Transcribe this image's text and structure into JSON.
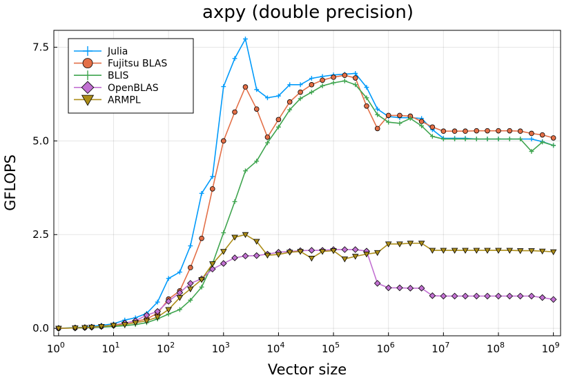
{
  "chart_data": {
    "type": "line",
    "title": "axpy (double precision)",
    "xlabel": "Vector size",
    "ylabel": "GFLOPS",
    "xscale": "log10",
    "xlim": [
      0.82,
      1350000000.0
    ],
    "ylim": [
      -0.2,
      7.95
    ],
    "xticks": [
      {
        "base": "10",
        "exp": "0",
        "value": 1
      },
      {
        "base": "10",
        "exp": "1",
        "value": 10
      },
      {
        "base": "10",
        "exp": "2",
        "value": 100
      },
      {
        "base": "10",
        "exp": "3",
        "value": 1000
      },
      {
        "base": "10",
        "exp": "4",
        "value": 10000
      },
      {
        "base": "10",
        "exp": "5",
        "value": 100000
      },
      {
        "base": "10",
        "exp": "6",
        "value": 1000000
      },
      {
        "base": "10",
        "exp": "7",
        "value": 10000000
      },
      {
        "base": "10",
        "exp": "8",
        "value": 100000000
      },
      {
        "base": "10",
        "exp": "9",
        "value": 1000000000
      }
    ],
    "yticks": [
      {
        "label": "0.0",
        "value": 0
      },
      {
        "label": "2.5",
        "value": 2.5
      },
      {
        "label": "5.0",
        "value": 5.0
      },
      {
        "label": "7.5",
        "value": 7.5
      }
    ],
    "grid": true,
    "legend_position": "top-left",
    "x": [
      1,
      2,
      3,
      4,
      6,
      10,
      16,
      25,
      40,
      63,
      100,
      160,
      250,
      400,
      630,
      1000,
      1600,
      2500,
      4000,
      6300,
      10000,
      16000,
      25000,
      40000,
      63000,
      100000,
      160000,
      250000,
      400000,
      630000,
      1000000,
      1600000,
      2500000,
      4000000,
      6300000,
      10000000,
      16000000,
      25000000,
      40000000,
      63000000,
      100000000,
      160000000,
      250000000,
      400000000,
      630000000,
      1000000000
    ],
    "series": [
      {
        "name": "Julia",
        "color": "#009AFA",
        "marker": "cross",
        "values": [
          0.0,
          0.02,
          0.03,
          0.05,
          0.08,
          0.12,
          0.22,
          0.28,
          0.4,
          0.7,
          1.33,
          1.5,
          2.2,
          3.6,
          4.05,
          6.45,
          7.2,
          7.72,
          6.37,
          6.15,
          6.2,
          6.5,
          6.5,
          6.67,
          6.72,
          6.76,
          6.78,
          6.8,
          6.43,
          5.85,
          5.65,
          5.62,
          5.62,
          5.6,
          5.3,
          5.07,
          5.07,
          5.07,
          5.05,
          5.05,
          5.05,
          5.05,
          5.05,
          5.05,
          4.98,
          4.88
        ]
      },
      {
        "name": "Fujitsu BLAS",
        "color": "#E36F47",
        "marker": "circle",
        "values": [
          0.0,
          0.01,
          0.02,
          0.03,
          0.05,
          0.08,
          0.14,
          0.18,
          0.25,
          0.4,
          0.78,
          1.0,
          1.62,
          2.4,
          3.72,
          5.0,
          5.77,
          6.44,
          5.85,
          5.1,
          5.57,
          6.04,
          6.3,
          6.5,
          6.62,
          6.7,
          6.75,
          6.68,
          5.93,
          5.33,
          5.68,
          5.68,
          5.66,
          5.52,
          5.37,
          5.26,
          5.26,
          5.26,
          5.27,
          5.27,
          5.27,
          5.27,
          5.26,
          5.2,
          5.16,
          5.08
        ]
      },
      {
        "name": "BLIS",
        "color": "#3EA44E",
        "marker": "cross",
        "values": [
          0.0,
          0.01,
          0.01,
          0.02,
          0.03,
          0.05,
          0.07,
          0.1,
          0.15,
          0.25,
          0.38,
          0.5,
          0.75,
          1.1,
          1.72,
          2.55,
          3.38,
          4.2,
          4.46,
          4.95,
          5.37,
          5.83,
          6.13,
          6.3,
          6.47,
          6.55,
          6.6,
          6.5,
          6.15,
          5.7,
          5.5,
          5.47,
          5.6,
          5.4,
          5.12,
          5.05,
          5.05,
          5.05,
          5.05,
          5.05,
          5.05,
          5.05,
          5.05,
          4.72,
          4.97,
          4.88
        ]
      },
      {
        "name": "OpenBLAS",
        "color": "#C271D2",
        "marker": "diamond",
        "values": [
          0.0,
          0.01,
          0.02,
          0.03,
          0.05,
          0.08,
          0.14,
          0.2,
          0.35,
          0.45,
          0.72,
          0.95,
          1.2,
          1.32,
          1.58,
          1.73,
          1.88,
          1.93,
          1.94,
          1.98,
          2.03,
          2.05,
          2.07,
          2.08,
          2.08,
          2.1,
          2.1,
          2.1,
          2.06,
          1.2,
          1.08,
          1.08,
          1.07,
          1.07,
          0.87,
          0.86,
          0.86,
          0.86,
          0.86,
          0.86,
          0.86,
          0.86,
          0.86,
          0.86,
          0.82,
          0.77
        ]
      },
      {
        "name": "ARMPL",
        "color": "#AC8D18",
        "marker": "triangle-down",
        "values": [
          0.0,
          0.01,
          0.02,
          0.03,
          0.05,
          0.08,
          0.1,
          0.15,
          0.2,
          0.3,
          0.5,
          0.82,
          1.05,
          1.3,
          1.72,
          2.05,
          2.43,
          2.5,
          2.32,
          1.95,
          1.97,
          2.03,
          2.05,
          1.87,
          2.05,
          2.07,
          1.85,
          1.92,
          1.98,
          2.02,
          2.25,
          2.25,
          2.27,
          2.27,
          2.08,
          2.08,
          2.08,
          2.08,
          2.08,
          2.08,
          2.08,
          2.08,
          2.07,
          2.07,
          2.06,
          2.04
        ]
      }
    ]
  }
}
